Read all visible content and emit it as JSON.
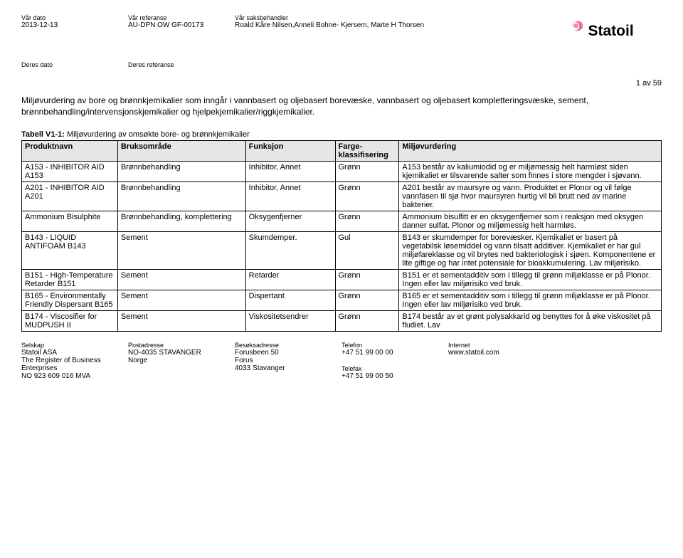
{
  "header": {
    "labels": {
      "date": "Vår dato",
      "ref": "Vår referanse",
      "handler": "Vår saksbehandler",
      "their_date": "Deres dato",
      "their_ref": "Deres referanse"
    },
    "values": {
      "date": "2013-12-13",
      "ref": "AU-DPN OW GF-00173",
      "handler": "Roald Kåre Nilsen,Anneli Bohne- Kjersem, Marte H Thorsen"
    },
    "company": "Statoil"
  },
  "page_number": "1 av 59",
  "intro": "Miljøvurdering av bore og brønnkjemikalier som inngår i vannbasert og oljebasert borevæske, vannbasert og oljebasert kompletteringsvæske, sement, brønnbehandling/intervensjonskjemikalier og hjelpekjemikalier/riggkjemikalier.",
  "table_caption_bold": "Tabell V1-1:",
  "table_caption_rest": " Miljøvurdering av omsøkte bore- og brønnkjemikalier",
  "columns": [
    "Produktnavn",
    "Bruksområde",
    "Funksjon",
    "Farge-\nklassifisering",
    "Miljøvurdering"
  ],
  "rows": [
    {
      "name": "A153 - INHIBITOR AID A153",
      "use": "Brønnbehandling",
      "func": "Inhibitor, Annet",
      "color": "Grønn",
      "env": "A153 består av kaliumiodid og er miljømessig helt harmløst siden kjemikaliet er tilsvarende salter som finnes i store mengder i sjøvann."
    },
    {
      "name": "A201 - INHIBITOR AID A201",
      "use": "Brønnbehandling",
      "func": "Inhibitor, Annet",
      "color": "Grønn",
      "env": "A201 består av maursyre og vann. Produktet er Plonor og vil følge vannfasen til sjø hvor maursyren hurtig vil bli brutt ned av marine bakterier."
    },
    {
      "name": "Ammonium Bisulphite",
      "use": "Brønnbehandling, komplettering",
      "func": "Oksygenfjerner",
      "color": "Grønn",
      "env": "Ammonium bisulfitt er en oksygenfjerner som i reaksjon med oksygen danner sulfat. Plonor og miljømessig helt harmløs."
    },
    {
      "name": "B143 - LIQUID ANTIFOAM B143",
      "use": "Sement",
      "func": "Skumdemper.",
      "color": "Gul",
      "env": "B143 er skumdemper for borevæsker. Kjemikaliet er basert på vegetabilsk løsemiddel og vann tilsatt additiver. Kjemikaliet er har gul miljøfareklasse og vil brytes ned bakteriologisk i sjøen. Komponentene er lite giftige og har intet potensiale for bioakkumulering. Lav miljørisiko."
    },
    {
      "name": "B151 - High-Temperature Retarder B151",
      "use": "Sement",
      "func": "Retarder",
      "color": "Grønn",
      "env": "B151 er et sementadditiv som i tillegg til grønn miljøklasse er på Plonor. Ingen eller lav miljørisiko ved bruk."
    },
    {
      "name": "B165 - Environmentally Friendly Dispersant B165",
      "use": "Sement",
      "func": "Dispertant",
      "color": "Grønn",
      "env": "B165 er et sementadditiv som i tillegg til grønn miljøklasse er på Plonor. Ingen eller lav miljørisiko ved bruk."
    },
    {
      "name": "B174 - Viscosifier for MUDPUSH II",
      "use": "Sement",
      "func": "Viskositetsendrer",
      "color": "Grønn",
      "env": "B174 består av et grønt polysakkarid og benyttes for å øke viskositet på fludiet. Lav"
    }
  ],
  "footer": {
    "company_lbl": "Selskap",
    "company": "Statoil ASA",
    "reg1": "The Register of Business",
    "reg2": "Enterprises",
    "reg3": "NO 923 609 016 MVA",
    "post_lbl": "Postadresse",
    "post1": "",
    "post2": "NO-4035 STAVANGER",
    "post3": "Norge",
    "visit_lbl": "Besøksadresse",
    "visit1": "Forusbeen 50",
    "visit2": "Forus",
    "visit3": "4033 Stavanger",
    "tel_lbl": "Telefon",
    "tel": "+47 51 99 00 00",
    "fax_lbl": "Telefax",
    "fax": "+47 51 99 00 50",
    "net_lbl": "Internet",
    "net": "www.statoil.com"
  },
  "colors": {
    "header_bg": "#e6e6e6",
    "logo_pink": "#ec6ea5",
    "logo_text": "#000000"
  }
}
